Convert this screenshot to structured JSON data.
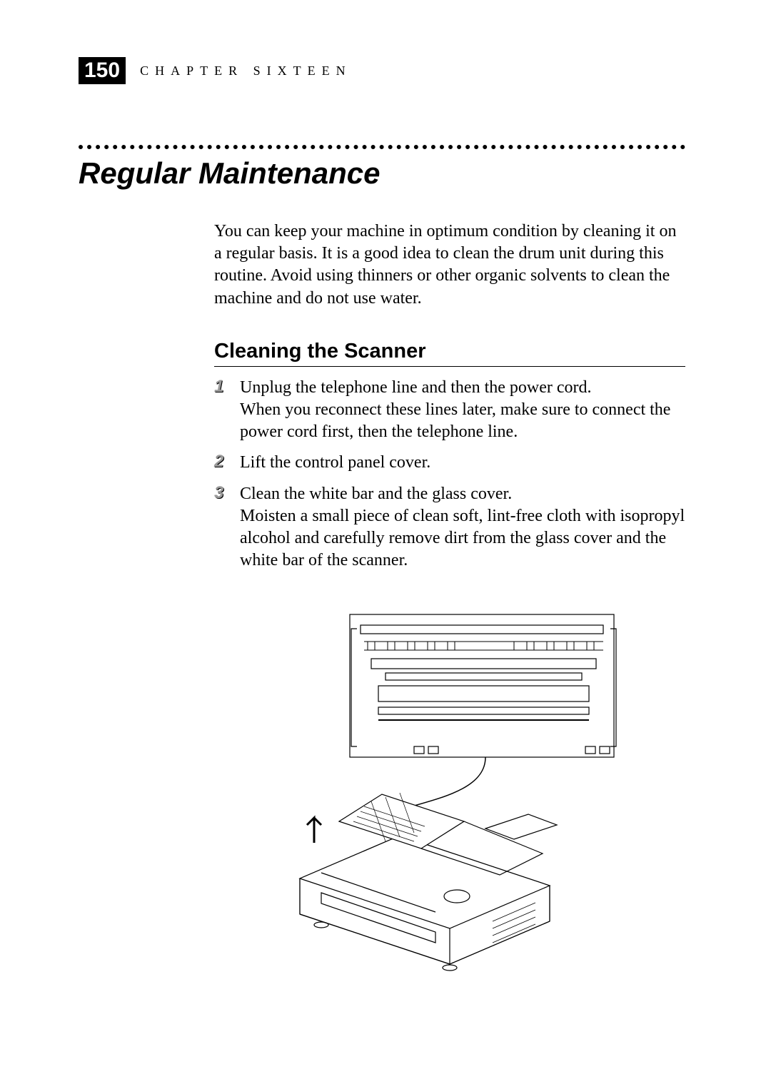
{
  "header": {
    "page_number": "150",
    "chapter_label": "CHAPTER SIXTEEN"
  },
  "section": {
    "title": "Regular Maintenance",
    "intro": "You can keep your machine in optimum condition by cleaning it on a regular basis. It is a good idea to clean the drum unit during this routine. Avoid using thinners or other organic solvents to clean the machine and do not use water."
  },
  "subsection": {
    "title": "Cleaning the Scanner",
    "steps": [
      {
        "num": "1",
        "text": "Unplug the telephone line and then the power cord.\nWhen you reconnect these lines later, make sure to connect the power cord first, then the telephone line."
      },
      {
        "num": "2",
        "text": "Lift the control panel cover."
      },
      {
        "num": "3",
        "text": "Clean the white bar and the glass cover.\nMoisten a small piece of clean soft, lint-free cloth with isopropyl alcohol and carefully remove dirt from the glass cover and the white bar of the scanner."
      }
    ]
  },
  "figure": {
    "type": "line-illustration",
    "description": "Fax machine with control panel lifted and callout box showing internal white bar and glass cover",
    "stroke_color": "#000000",
    "background_color": "#ffffff",
    "stroke_width": 1.2
  },
  "style": {
    "page_bg": "#ffffff",
    "text_color": "#000000",
    "dotted_rule_color": "#000000",
    "step_num_color": "#999999",
    "step_num_shadow": "#000000",
    "section_title_fontsize": 42,
    "subsection_title_fontsize": 29,
    "body_fontsize": 24
  }
}
